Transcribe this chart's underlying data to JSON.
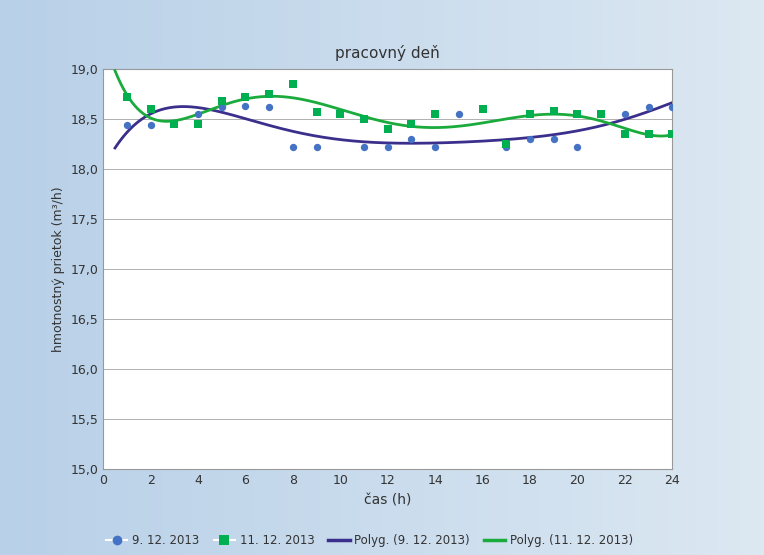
{
  "title": "pracovný deň",
  "xlabel": "čas (h)",
  "ylabel": "hmotnostný prietok (m³/h)",
  "xlim": [
    0,
    24
  ],
  "ylim": [
    15.0,
    19.0
  ],
  "xticks": [
    0,
    2,
    4,
    6,
    8,
    10,
    12,
    14,
    16,
    18,
    20,
    22,
    24
  ],
  "yticks": [
    15.0,
    15.5,
    16.0,
    16.5,
    17.0,
    17.5,
    18.0,
    18.5,
    19.0
  ],
  "series1_x": [
    1,
    2,
    4,
    5,
    6,
    7,
    8,
    9,
    11,
    12,
    13,
    14,
    15,
    17,
    18,
    19,
    20,
    21,
    22,
    23,
    24
  ],
  "series1_y": [
    18.44,
    18.44,
    18.55,
    18.62,
    18.63,
    18.62,
    18.22,
    18.22,
    18.22,
    18.22,
    18.3,
    18.22,
    18.55,
    18.22,
    18.3,
    18.3,
    18.22,
    18.55,
    18.55,
    18.62,
    18.62
  ],
  "series2_x": [
    1,
    2,
    3,
    4,
    5,
    6,
    7,
    8,
    9,
    10,
    11,
    12,
    13,
    14,
    16,
    17,
    18,
    19,
    20,
    21,
    22,
    23,
    24
  ],
  "series2_y": [
    18.72,
    18.6,
    18.45,
    18.45,
    18.68,
    18.72,
    18.75,
    18.85,
    18.57,
    18.55,
    18.5,
    18.4,
    18.45,
    18.55,
    18.6,
    18.25,
    18.55,
    18.58,
    18.55,
    18.55,
    18.35,
    18.35,
    18.35
  ],
  "series1_color": "#4472c4",
  "series2_color": "#00b050",
  "poly1_color": "#3b2f8c",
  "poly2_color": "#1aab3c",
  "bg_left": "#b8d0e8",
  "bg_right": "#dce8f2",
  "plot_background": "#ffffff",
  "grid_color": "#b0b0b0",
  "legend_labels": [
    "9. 12. 2013",
    "11. 12. 2013",
    "Polyg. (9. 12. 2013)",
    "Polyg. (11. 12. 2013)"
  ],
  "poly1_degree": 6,
  "poly2_degree": 6
}
